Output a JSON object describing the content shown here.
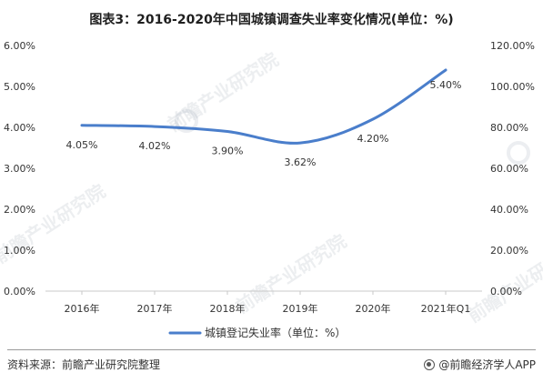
{
  "title": "图表3：2016-2020年中国城镇调查失业率变化情况(单位：%)",
  "footer": {
    "source": "资料来源：前瞻产业研究院整理",
    "brand": "@前瞻经济学人APP"
  },
  "watermark": "前瞻产业研究院",
  "chart_data": {
    "type": "line",
    "categories": [
      "2016年",
      "2017年",
      "2018年",
      "2019年",
      "2020年",
      "2021年Q1"
    ],
    "series": [
      {
        "name": "城镇登记失业率（单位：%）",
        "values": [
          4.05,
          4.02,
          3.9,
          3.62,
          4.2,
          5.4
        ],
        "labels": [
          "4.05%",
          "4.02%",
          "3.90%",
          "3.62%",
          "4.20%",
          "5.40%"
        ],
        "color": "#4a7ecb"
      }
    ],
    "y_left": {
      "ylim": [
        0,
        6
      ],
      "ticks": [
        "0.00%",
        "1.00%",
        "2.00%",
        "3.00%",
        "4.00%",
        "5.00%",
        "6.00%"
      ]
    },
    "y_right": {
      "ylim": [
        0,
        120
      ],
      "ticks": [
        "0.00%",
        "20.00%",
        "40.00%",
        "60.00%",
        "80.00%",
        "100.00%",
        "120.00%"
      ]
    },
    "grid": false,
    "legend": "bottom-center"
  }
}
